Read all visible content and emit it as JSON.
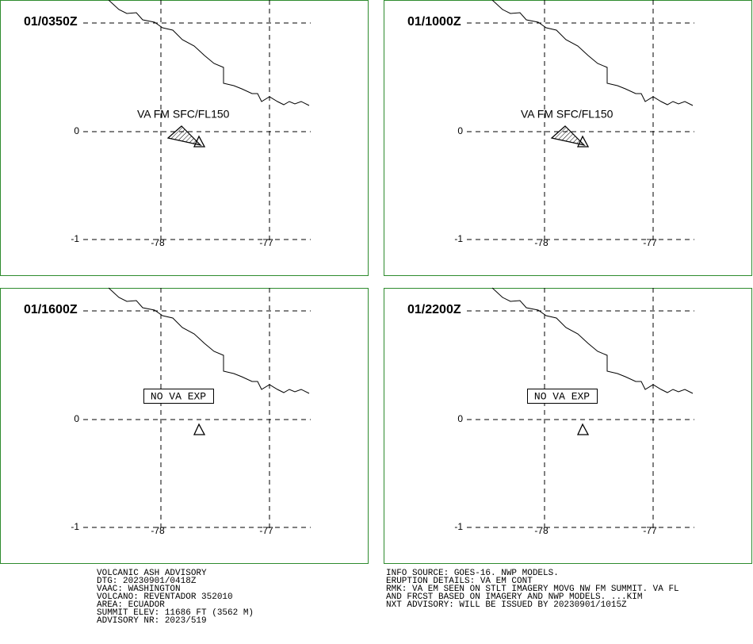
{
  "panels": [
    {
      "time": "01/0350Z",
      "annotation": "VA FM SFC/FL150",
      "ash_area": true
    },
    {
      "time": "01/1000Z",
      "annotation": "VA FM SFC/FL150",
      "ash_area": true
    },
    {
      "time": "01/1600Z",
      "annotation": "NO VA EXP",
      "ash_area": false
    },
    {
      "time": "01/2200Z",
      "annotation": "NO VA EXP",
      "ash_area": false
    }
  ],
  "lat_labels": [
    "0",
    "-1"
  ],
  "lon_labels": [
    "-78",
    "-77"
  ],
  "advisory_left": [
    "VOLCANIC ASH ADVISORY",
    "DTG: 20230901/0418Z",
    "VAAC: WASHINGTON",
    "VOLCANO: REVENTADOR 352010",
    "AREA: ECUADOR",
    "SUMMIT ELEV: 11686 FT (3562 M)",
    "ADVISORY NR: 2023/519"
  ],
  "advisory_right": [
    "INFO SOURCE: GOES-16. NWP MODELS.",
    "ERUPTION DETAILS: VA EM CONT",
    "RMK: VA EM SEEN ON STLT IMAGERY MOVG NW FM SUMMIT. VA FL",
    "AND FRCST BASED ON IMAGERY AND NWP MODELS. ...KIM",
    "NXT ADVISORY: WILL BE ISSUED BY 20230901/1015Z"
  ]
}
